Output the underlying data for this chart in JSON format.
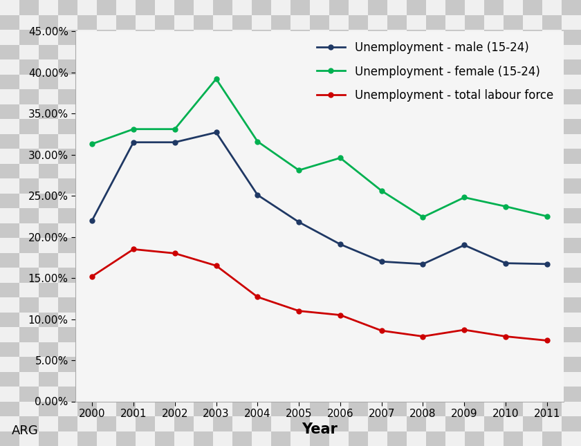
{
  "years": [
    2000,
    2001,
    2002,
    2003,
    2004,
    2005,
    2006,
    2007,
    2008,
    2009,
    2010,
    2011
  ],
  "male_15_24": [
    0.22,
    0.315,
    0.315,
    0.327,
    0.251,
    0.218,
    0.191,
    0.17,
    0.167,
    0.19,
    0.168,
    0.167
  ],
  "female_15_24": [
    0.313,
    0.331,
    0.331,
    0.392,
    0.316,
    0.281,
    0.296,
    0.256,
    0.224,
    0.248,
    0.237,
    0.225
  ],
  "total_labour": [
    0.152,
    0.185,
    0.18,
    0.165,
    0.127,
    0.11,
    0.105,
    0.086,
    0.079,
    0.087,
    0.079,
    0.074
  ],
  "male_color": "#1f3864",
  "female_color": "#00b050",
  "total_color": "#cc0000",
  "male_label": "Unemployment - male (15-24)",
  "female_label": "Unemployment - female (15-24)",
  "total_label": "Unemployment - total labour force",
  "xlabel": "Year",
  "ylim": [
    0.0,
    0.45
  ],
  "yticks": [
    0.0,
    0.05,
    0.1,
    0.15,
    0.2,
    0.25,
    0.3,
    0.35,
    0.4,
    0.45
  ],
  "marker": "o",
  "marker_size": 5,
  "line_width": 2.0,
  "annotation": "ARG",
  "annotation_fontsize": 13,
  "legend_fontsize": 12,
  "xlabel_fontsize": 15,
  "tick_fontsize": 11,
  "checker_color1": "#c8c8c8",
  "checker_color2": "#f0f0f0",
  "checker_squares": 30
}
